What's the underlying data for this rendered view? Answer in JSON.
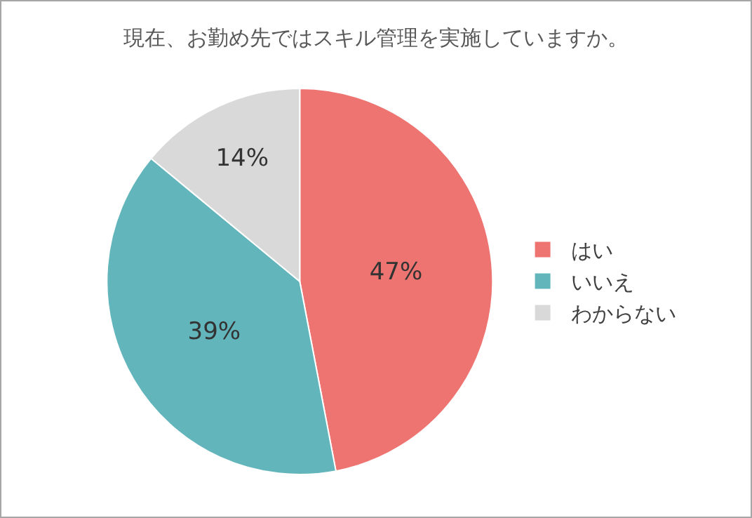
{
  "chart_data": {
    "type": "pie",
    "title": "現在、お勤め先ではスキル管理を実施していますか。",
    "categories": [
      "はい",
      "いいえ",
      "わからない"
    ],
    "values": [
      47,
      39,
      14
    ],
    "value_labels": [
      "47%",
      "39%",
      "14%"
    ],
    "colors": [
      "#ed7470",
      "#62b5bb",
      "#d9d9d9"
    ],
    "legend": "right"
  }
}
